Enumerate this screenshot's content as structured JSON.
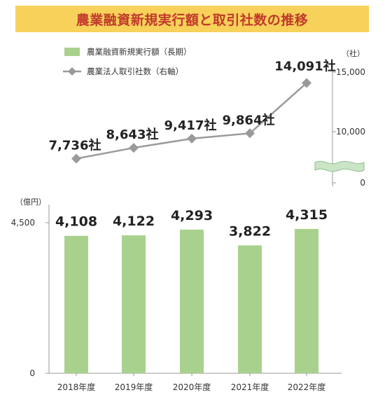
{
  "title": "農業融資新規実行額と取引社数の推移",
  "colors": {
    "bar": "#a9d18e",
    "line": "#9a9a9a",
    "title_bg": "#f7d15a",
    "title_text": "#c0392b",
    "axis_break": "#c9e5c6"
  },
  "legend": {
    "bar_label": "農業融資新規実行額（長期）",
    "line_label": "農業法人取引社数（右軸）"
  },
  "right_axis": {
    "unit": "（社）",
    "ticks": [
      "15,000",
      "10,000",
      "0"
    ]
  },
  "left_axis": {
    "unit": "（億円）",
    "ticks": [
      "4,500",
      "0"
    ]
  },
  "chart_data": {
    "type": "bar",
    "categories": [
      "2018年度",
      "2019年度",
      "2020年度",
      "2021年度",
      "2022年度"
    ],
    "series": [
      {
        "name": "農業融資新規実行額（長期）",
        "type": "bar",
        "axis": "left",
        "values": [
          4108,
          4122,
          4293,
          3822,
          4315
        ],
        "labels": [
          "4,108",
          "4,122",
          "4,293",
          "3,822",
          "4,315"
        ]
      },
      {
        "name": "農業法人取引社数（右軸）",
        "type": "line",
        "axis": "right",
        "values": [
          7736,
          8643,
          9417,
          9864,
          14091
        ],
        "labels": [
          "7,736社",
          "8,643社",
          "9,417社",
          "9,864社",
          "14,091社"
        ]
      }
    ],
    "left_ylim": [
      0,
      4500
    ],
    "right_ylim": [
      0,
      15000
    ],
    "right_axis_break": [
      0,
      10000
    ]
  }
}
